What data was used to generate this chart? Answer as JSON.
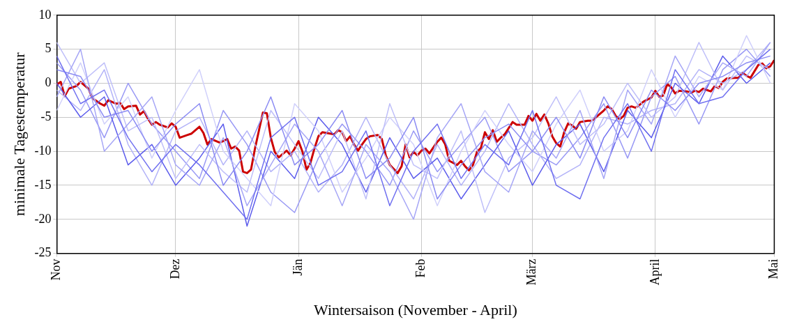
{
  "chart_data": {
    "type": "line",
    "xlabel": "Wintersaison (November - April)",
    "ylabel": "minimale Tagestemperatur",
    "ylim": [
      -25,
      10
    ],
    "yticks": [
      -25,
      -20,
      -15,
      -10,
      -5,
      0,
      5,
      10
    ],
    "grid": true,
    "legend": false,
    "marker": "none",
    "line_style": "solid",
    "categories": [
      "Nov",
      null,
      null,
      null,
      null,
      null,
      null,
      null,
      null,
      null,
      null,
      null,
      null,
      null,
      null,
      null,
      null,
      null,
      null,
      null,
      null,
      null,
      null,
      null,
      null,
      null,
      null,
      null,
      null,
      null,
      "Dez",
      null,
      null,
      null,
      null,
      null,
      null,
      null,
      null,
      null,
      null,
      null,
      null,
      null,
      null,
      null,
      null,
      null,
      null,
      null,
      null,
      null,
      null,
      null,
      null,
      null,
      null,
      null,
      null,
      null,
      null,
      "Jän",
      null,
      null,
      null,
      null,
      null,
      null,
      null,
      null,
      null,
      null,
      null,
      null,
      null,
      null,
      null,
      null,
      null,
      null,
      null,
      null,
      null,
      null,
      null,
      null,
      null,
      null,
      null,
      null,
      null,
      null,
      "Feb",
      null,
      null,
      null,
      null,
      null,
      null,
      null,
      null,
      null,
      null,
      null,
      null,
      null,
      null,
      null,
      null,
      null,
      null,
      null,
      null,
      null,
      null,
      null,
      null,
      null,
      null,
      null,
      "März",
      null,
      null,
      null,
      null,
      null,
      null,
      null,
      null,
      null,
      null,
      null,
      null,
      null,
      null,
      null,
      null,
      null,
      null,
      null,
      null,
      null,
      null,
      null,
      null,
      null,
      null,
      null,
      null,
      null,
      null,
      "April",
      null,
      null,
      null,
      null,
      null,
      null,
      null,
      null,
      null,
      null,
      null,
      null,
      null,
      null,
      null,
      null,
      null,
      null,
      null,
      null,
      null,
      null,
      null,
      null,
      null,
      null,
      null,
      null,
      null,
      "Mai"
    ],
    "series": [
      {
        "color": "#7070f0",
        "values": [
          4,
          null,
          null,
          null,
          null,
          null,
          -3,
          null,
          null,
          null,
          null,
          null,
          -1,
          null,
          null,
          null,
          null,
          null,
          -8,
          null,
          null,
          null,
          null,
          null,
          -13,
          null,
          null,
          null,
          null,
          null,
          -9,
          null,
          null,
          null,
          null,
          null,
          -12,
          null,
          null,
          null,
          null,
          null,
          -16,
          null,
          null,
          null,
          null,
          null,
          -20,
          null,
          null,
          null,
          null,
          null,
          -8,
          null,
          null,
          null,
          null,
          null,
          -5,
          null,
          null,
          null,
          null,
          null,
          -15,
          null,
          null,
          null,
          null,
          null,
          -13,
          null,
          null,
          null,
          null,
          null,
          -7,
          null,
          null,
          null,
          null,
          null,
          -18,
          null,
          null,
          null,
          null,
          null,
          -10,
          null,
          null,
          null,
          null,
          null,
          -6,
          null,
          null,
          null,
          null,
          null,
          -14,
          null,
          null,
          null,
          null,
          null,
          -9,
          null,
          null,
          null,
          null,
          null,
          -12,
          null,
          null,
          null,
          null,
          null,
          -4,
          null,
          null,
          null,
          null,
          null,
          -15,
          null,
          null,
          null,
          null,
          null,
          -17,
          null,
          null,
          null,
          null,
          null,
          -8,
          null,
          null,
          null,
          null,
          null,
          -3,
          null,
          null,
          null,
          null,
          null,
          -10,
          null,
          null,
          null,
          null,
          null,
          2,
          null,
          null,
          null,
          null,
          null,
          -3,
          null,
          null,
          null,
          null,
          null,
          -2,
          null,
          null,
          null,
          null,
          null,
          2,
          null,
          null,
          null,
          null,
          null,
          5,
          null
        ]
      },
      {
        "color": "#8c8cf3",
        "values": [
          2,
          null,
          null,
          null,
          null,
          null,
          1,
          null,
          null,
          null,
          null,
          null,
          -5,
          null,
          null,
          null,
          null,
          null,
          -4,
          null,
          null,
          null,
          null,
          null,
          -10,
          null,
          null,
          null,
          null,
          null,
          -6,
          null,
          null,
          null,
          null,
          null,
          -3,
          null,
          null,
          null,
          null,
          null,
          -15,
          null,
          null,
          null,
          null,
          null,
          -10,
          null,
          null,
          null,
          null,
          null,
          -2,
          null,
          null,
          null,
          null,
          null,
          -12,
          null,
          null,
          null,
          null,
          null,
          -9,
          null,
          null,
          null,
          null,
          null,
          -4,
          null,
          null,
          null,
          null,
          null,
          -14,
          null,
          null,
          null,
          null,
          null,
          -11,
          null,
          null,
          null,
          null,
          null,
          -5,
          null,
          null,
          null,
          null,
          null,
          -17,
          null,
          null,
          null,
          null,
          null,
          -12,
          null,
          null,
          null,
          null,
          null,
          -8,
          null,
          null,
          null,
          null,
          null,
          -6,
          null,
          null,
          null,
          null,
          null,
          -10,
          null,
          null,
          null,
          null,
          null,
          -5,
          null,
          null,
          null,
          null,
          null,
          -11,
          null,
          null,
          null,
          null,
          null,
          -2,
          null,
          null,
          null,
          null,
          null,
          -8,
          null,
          null,
          null,
          null,
          null,
          -1,
          null,
          null,
          null,
          null,
          null,
          -4,
          null,
          null,
          null,
          null,
          null,
          0,
          null,
          null,
          null,
          null,
          null,
          1,
          null,
          null,
          null,
          null,
          null,
          3,
          null,
          null,
          null,
          null,
          null,
          4,
          null
        ]
      },
      {
        "color": "#a6a6f6",
        "values": [
          -2,
          null,
          null,
          null,
          null,
          null,
          5,
          null,
          null,
          null,
          null,
          null,
          -10,
          null,
          null,
          null,
          null,
          null,
          -6,
          null,
          null,
          null,
          null,
          null,
          -2,
          null,
          null,
          null,
          null,
          null,
          -12,
          null,
          null,
          null,
          null,
          null,
          -15,
          null,
          null,
          null,
          null,
          null,
          -8,
          null,
          null,
          null,
          null,
          null,
          -18,
          null,
          null,
          null,
          null,
          null,
          -12,
          null,
          null,
          null,
          null,
          null,
          -6,
          null,
          null,
          null,
          null,
          null,
          -10,
          null,
          null,
          null,
          null,
          null,
          -18,
          null,
          null,
          null,
          null,
          null,
          -9,
          null,
          null,
          null,
          null,
          null,
          -13,
          null,
          null,
          null,
          null,
          null,
          -20,
          null,
          null,
          null,
          null,
          null,
          -8,
          null,
          null,
          null,
          null,
          null,
          -3,
          null,
          null,
          null,
          null,
          null,
          -13,
          null,
          null,
          null,
          null,
          null,
          -16,
          null,
          null,
          null,
          null,
          null,
          -7,
          null,
          null,
          null,
          null,
          null,
          -11,
          null,
          null,
          null,
          null,
          null,
          -4,
          null,
          null,
          null,
          null,
          null,
          -14,
          null,
          null,
          null,
          null,
          null,
          -1,
          null,
          null,
          null,
          null,
          null,
          -6,
          null,
          null,
          null,
          null,
          null,
          4,
          null,
          null,
          null,
          null,
          null,
          -2,
          null,
          null,
          null,
          null,
          null,
          3,
          null,
          null,
          null,
          null,
          null,
          1,
          null,
          null,
          null,
          null,
          null,
          6,
          null
        ]
      },
      {
        "color": "#bfbff9",
        "values": [
          6,
          null,
          null,
          null,
          null,
          null,
          0,
          null,
          null,
          null,
          null,
          null,
          3,
          null,
          null,
          null,
          null,
          null,
          -7,
          null,
          null,
          null,
          null,
          null,
          -5,
          null,
          null,
          null,
          null,
          null,
          -14,
          null,
          null,
          null,
          null,
          null,
          -9,
          null,
          null,
          null,
          null,
          null,
          -13,
          null,
          null,
          null,
          null,
          null,
          -16,
          null,
          null,
          null,
          null,
          null,
          -4,
          null,
          null,
          null,
          null,
          null,
          -9,
          null,
          null,
          null,
          null,
          null,
          -14,
          null,
          null,
          null,
          null,
          null,
          -7,
          null,
          null,
          null,
          null,
          null,
          -17,
          null,
          null,
          null,
          null,
          null,
          -3,
          null,
          null,
          null,
          null,
          null,
          -12,
          null,
          null,
          null,
          null,
          null,
          -14,
          null,
          null,
          null,
          null,
          null,
          -7,
          null,
          null,
          null,
          null,
          null,
          -19,
          null,
          null,
          null,
          null,
          null,
          -11,
          null,
          null,
          null,
          null,
          null,
          -8,
          null,
          null,
          null,
          null,
          null,
          -2,
          null,
          null,
          null,
          null,
          null,
          -9,
          null,
          null,
          null,
          null,
          null,
          -6,
          null,
          null,
          null,
          null,
          null,
          0,
          null,
          null,
          null,
          null,
          null,
          -5,
          null,
          null,
          null,
          null,
          null,
          -2,
          null,
          null,
          null,
          null,
          null,
          6,
          null,
          null,
          null,
          null,
          null,
          -1,
          null,
          null,
          null,
          null,
          null,
          4,
          null,
          null,
          null,
          null,
          null,
          2,
          null
        ]
      },
      {
        "color": "#d0d0fb",
        "values": [
          -4,
          null,
          null,
          null,
          null,
          null,
          3,
          null,
          null,
          null,
          null,
          null,
          -6,
          null,
          null,
          null,
          null,
          null,
          -2,
          null,
          null,
          null,
          null,
          null,
          -11,
          null,
          null,
          null,
          null,
          null,
          -4,
          null,
          null,
          null,
          null,
          null,
          2,
          null,
          null,
          null,
          null,
          null,
          -10,
          null,
          null,
          null,
          null,
          null,
          -14,
          null,
          null,
          null,
          null,
          null,
          -18,
          null,
          null,
          null,
          null,
          null,
          -3,
          null,
          null,
          null,
          null,
          null,
          -7,
          null,
          null,
          null,
          null,
          null,
          -16,
          null,
          null,
          null,
          null,
          null,
          -11,
          null,
          null,
          null,
          null,
          null,
          -5,
          null,
          null,
          null,
          null,
          null,
          -9,
          null,
          null,
          null,
          null,
          null,
          -18,
          null,
          null,
          null,
          null,
          null,
          -10,
          null,
          null,
          null,
          null,
          null,
          -4,
          null,
          null,
          null,
          null,
          null,
          -9,
          null,
          null,
          null,
          null,
          null,
          -13,
          null,
          null,
          null,
          null,
          null,
          -6,
          null,
          null,
          null,
          null,
          null,
          -1,
          null,
          null,
          null,
          null,
          null,
          -10,
          null,
          null,
          null,
          null,
          null,
          -7,
          null,
          null,
          null,
          null,
          null,
          2,
          null,
          null,
          null,
          null,
          null,
          -5,
          null,
          null,
          null,
          null,
          null,
          1,
          null,
          null,
          null,
          null,
          null,
          -1,
          null,
          null,
          null,
          null,
          null,
          7,
          null,
          null,
          null,
          null,
          null,
          0,
          null
        ]
      },
      {
        "color": "#5c5cec",
        "values": [
          0,
          null,
          null,
          null,
          null,
          null,
          -5,
          null,
          null,
          null,
          null,
          null,
          -2,
          null,
          null,
          null,
          null,
          null,
          -12,
          null,
          null,
          null,
          null,
          null,
          -9,
          null,
          null,
          null,
          null,
          null,
          -15,
          null,
          null,
          null,
          null,
          null,
          -11,
          null,
          null,
          null,
          null,
          null,
          -6,
          null,
          null,
          null,
          null,
          null,
          -21,
          null,
          null,
          null,
          null,
          null,
          -10,
          null,
          null,
          null,
          null,
          null,
          -14,
          null,
          null,
          null,
          null,
          null,
          -5,
          null,
          null,
          null,
          null,
          null,
          -9,
          null,
          null,
          null,
          null,
          null,
          -16,
          null,
          null,
          null,
          null,
          null,
          -8,
          null,
          null,
          null,
          null,
          null,
          -14,
          null,
          null,
          null,
          null,
          null,
          -11,
          null,
          null,
          null,
          null,
          null,
          -17,
          null,
          null,
          null,
          null,
          null,
          -12,
          null,
          null,
          null,
          null,
          null,
          -7,
          null,
          null,
          null,
          null,
          null,
          -15,
          null,
          null,
          null,
          null,
          null,
          -9,
          null,
          null,
          null,
          null,
          null,
          -6,
          null,
          null,
          null,
          null,
          null,
          -13,
          null,
          null,
          null,
          null,
          null,
          -4,
          null,
          null,
          null,
          null,
          null,
          -8,
          null,
          null,
          null,
          null,
          null,
          0,
          null,
          null,
          null,
          null,
          null,
          -3,
          null,
          null,
          null,
          null,
          null,
          4,
          null,
          null,
          null,
          null,
          null,
          0,
          null,
          null,
          null,
          null,
          null,
          3,
          null
        ]
      },
      {
        "color": "#9999f5",
        "values": [
          3,
          null,
          null,
          null,
          null,
          null,
          -1,
          null,
          null,
          null,
          null,
          null,
          -8,
          null,
          null,
          null,
          null,
          null,
          0,
          null,
          null,
          null,
          null,
          null,
          -6,
          null,
          null,
          null,
          null,
          null,
          -10,
          null,
          null,
          null,
          null,
          null,
          -14,
          null,
          null,
          null,
          null,
          null,
          -4,
          null,
          null,
          null,
          null,
          null,
          -9,
          null,
          null,
          null,
          null,
          null,
          -16,
          null,
          null,
          null,
          null,
          null,
          -19,
          null,
          null,
          null,
          null,
          null,
          -11,
          null,
          null,
          null,
          null,
          null,
          -6,
          null,
          null,
          null,
          null,
          null,
          -10,
          null,
          null,
          null,
          null,
          null,
          -15,
          null,
          null,
          null,
          null,
          null,
          -7,
          null,
          null,
          null,
          null,
          null,
          -13,
          null,
          null,
          null,
          null,
          null,
          -9,
          null,
          null,
          null,
          null,
          null,
          -5,
          null,
          null,
          null,
          null,
          null,
          -13,
          null,
          null,
          null,
          null,
          null,
          -10,
          null,
          null,
          null,
          null,
          null,
          -12,
          null,
          null,
          null,
          null,
          null,
          -8,
          null,
          null,
          null,
          null,
          null,
          -3,
          null,
          null,
          null,
          null,
          null,
          -11,
          null,
          null,
          null,
          null,
          null,
          -2,
          null,
          null,
          null,
          null,
          null,
          1,
          null,
          null,
          null,
          null,
          null,
          -6,
          null,
          null,
          null,
          null,
          null,
          2,
          null,
          null,
          null,
          null,
          null,
          5,
          null,
          null,
          null,
          null,
          null,
          1,
          null
        ]
      },
      {
        "color": "#b3b3f8",
        "values": [
          -1,
          null,
          null,
          null,
          null,
          null,
          -4,
          null,
          null,
          null,
          null,
          null,
          2,
          null,
          null,
          null,
          null,
          null,
          -9,
          null,
          null,
          null,
          null,
          null,
          -15,
          null,
          null,
          null,
          null,
          null,
          -7,
          null,
          null,
          null,
          null,
          null,
          -5,
          null,
          null,
          null,
          null,
          null,
          -12,
          null,
          null,
          null,
          null,
          null,
          -7,
          null,
          null,
          null,
          null,
          null,
          -13,
          null,
          null,
          null,
          null,
          null,
          -10,
          null,
          null,
          null,
          null,
          null,
          -16,
          null,
          null,
          null,
          null,
          null,
          -12,
          null,
          null,
          null,
          null,
          null,
          -5,
          null,
          null,
          null,
          null,
          null,
          -12,
          null,
          null,
          null,
          null,
          null,
          -17,
          null,
          null,
          null,
          null,
          null,
          -9,
          null,
          null,
          null,
          null,
          null,
          -15,
          null,
          null,
          null,
          null,
          null,
          -10,
          null,
          null,
          null,
          null,
          null,
          -3,
          null,
          null,
          null,
          null,
          null,
          -9,
          null,
          null,
          null,
          null,
          null,
          -14,
          null,
          null,
          null,
          null,
          null,
          -12,
          null,
          null,
          null,
          null,
          null,
          -5,
          null,
          null,
          null,
          null,
          null,
          -6,
          null,
          null,
          null,
          null,
          null,
          -4,
          null,
          null,
          null,
          null,
          null,
          -3,
          null,
          null,
          null,
          null,
          null,
          2,
          null,
          null,
          null,
          null,
          null,
          0,
          null,
          null,
          null,
          null,
          null,
          2,
          null,
          null,
          null,
          null,
          null,
          6,
          null
        ]
      },
      {
        "color": "#cc0000",
        "values": [
          -0.2,
          0.2,
          -1.9,
          -0.8,
          null,
          -0.4,
          0.2,
          null,
          -0.8,
          -2.2,
          null,
          -3.0,
          -3.3,
          -2.5,
          null,
          -3.0,
          -2.9,
          -3.8,
          -3.4,
          null,
          -3.3,
          -4.6,
          -4.1,
          -5.2,
          -6.1,
          -5.7,
          -6.1,
          null,
          -6.5,
          -5.9,
          -6.4,
          -8.0,
          null,
          -7.6,
          -7.4,
          null,
          -6.4,
          -7.3,
          -9.0,
          -8.2,
          null,
          -8.7,
          -8.5,
          -8.2,
          -9.6,
          -9.3,
          -9.9,
          -13.0,
          -13.2,
          -12.7,
          -9.6,
          null,
          -4.3,
          -4.4,
          -8.0,
          -10.1,
          -10.9,
          null,
          -9.9,
          -10.6,
          -9.6,
          -8.5,
          -10.1,
          -12.7,
          -11.7,
          -9.6,
          -7.8,
          -7.2,
          null,
          -7.4,
          -7.5,
          -6.9,
          -7.2,
          -8.5,
          -7.8,
          -9.0,
          -9.9,
          -9.0,
          -8.2,
          -7.8,
          null,
          -7.6,
          -8.2,
          -10.6,
          -12.0,
          null,
          -13.2,
          -12.2,
          -9.0,
          -10.9,
          -10.1,
          -10.6,
          -9.9,
          -9.6,
          -10.3,
          null,
          -8.6,
          -8.0,
          -9.0,
          -11.4,
          null,
          -12.0,
          -11.4,
          -12.2,
          -12.8,
          -12.0,
          -10.1,
          -9.5,
          -7.2,
          -8.2,
          -6.9,
          -8.6,
          -8.0,
          -7.5,
          null,
          -5.7,
          -6.1,
          null,
          -6.1,
          -4.8,
          -5.5,
          -4.5,
          -5.5,
          -4.6,
          -5.9,
          -7.8,
          -8.8,
          -9.3,
          -7.2,
          -5.9,
          -6.2,
          -6.7,
          -5.7,
          null,
          -5.5,
          -5.5,
          -5.0,
          null,
          -4.0,
          -3.4,
          -3.8,
          -4.8,
          -5.3,
          -4.8,
          -3.6,
          -3.4,
          -3.6,
          -3.2,
          -2.7,
          null,
          -2.1,
          -1.1,
          -2.0,
          -1.8,
          -0.1,
          -0.6,
          -1.5,
          -1.1,
          null,
          -1.2,
          -1.4,
          -1.1,
          -1.3,
          -0.8,
          null,
          -1.2,
          -0.4,
          -0.7,
          0.2,
          0.7,
          null,
          0.8,
          0.8,
          1.5,
          1.1,
          0.8,
          null,
          2.7,
          2.9,
          2.2,
          2.5,
          3.4
        ]
      }
    ]
  }
}
